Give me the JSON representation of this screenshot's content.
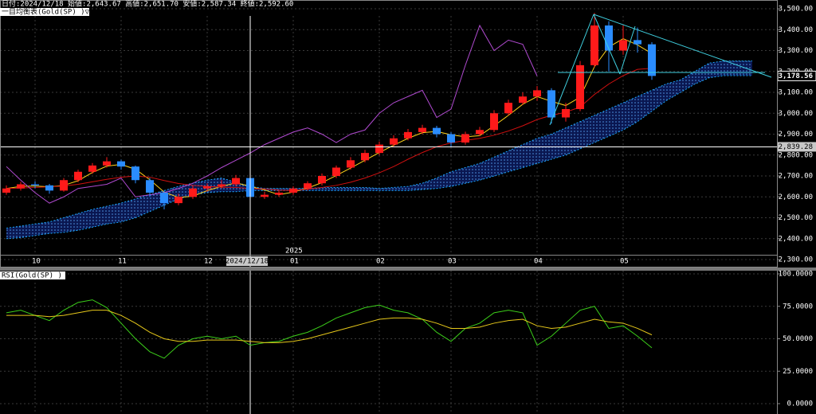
{
  "header": {
    "ohlc_line": "日付:2024/12/18 始値:2,643.67 高値:2,651.70 安値:2,587.34 終値:2,592.60",
    "indicator_label": "一目均衡表(Gold(SP) )▽×"
  },
  "chart_data": [
    {
      "type": "candlestick",
      "categories": [
        null,
        null,
        "10",
        null,
        null,
        null,
        null,
        null,
        "11",
        null,
        null,
        null,
        null,
        null,
        "12",
        null,
        null,
        null,
        null,
        null,
        "01",
        null,
        null,
        null,
        null,
        null,
        "02",
        null,
        null,
        null,
        null,
        "03",
        null,
        null,
        null,
        null,
        null,
        "04",
        null,
        null,
        null,
        null,
        null,
        "05",
        null,
        null,
        null,
        null,
        null,
        null,
        null,
        null,
        null
      ],
      "year_label": "2025",
      "open": [
        2620,
        2640,
        2660,
        2655,
        2630,
        2680,
        2720,
        2750,
        2770,
        2745,
        2680,
        2620,
        2570,
        2600,
        2640,
        2650,
        2660,
        2690,
        2600,
        2610,
        2620,
        2640,
        2665,
        2700,
        2740,
        2775,
        2810,
        2850,
        2880,
        2910,
        2930,
        2900,
        2860,
        2900,
        2920,
        3000,
        3050,
        3080,
        3110,
        2980,
        3020,
        3230,
        3420,
        3300,
        3350,
        3330,
        null,
        null,
        null,
        null,
        null,
        null,
        null
      ],
      "high": [
        2655,
        2672,
        2675,
        2662,
        2690,
        2730,
        2762,
        2790,
        2778,
        2750,
        2690,
        2630,
        2615,
        2655,
        2665,
        2680,
        2705,
        2695,
        2625,
        2632,
        2650,
        2675,
        2712,
        2750,
        2790,
        2825,
        2865,
        2895,
        2925,
        2945,
        2940,
        2910,
        2912,
        2935,
        3015,
        3065,
        3100,
        3130,
        3120,
        3050,
        3250,
        3480,
        3440,
        3420,
        3410,
        3340,
        null,
        null,
        null,
        null,
        null,
        null,
        null
      ],
      "low": [
        2610,
        2630,
        2640,
        2615,
        2625,
        2670,
        2710,
        2740,
        2730,
        2665,
        2600,
        2540,
        2560,
        2590,
        2625,
        2640,
        2650,
        2585,
        2590,
        2600,
        2610,
        2630,
        2655,
        2690,
        2730,
        2765,
        2800,
        2840,
        2870,
        2900,
        2885,
        2840,
        2850,
        2890,
        2910,
        2990,
        3040,
        3060,
        2950,
        2960,
        3010,
        3220,
        3200,
        3280,
        3290,
        3160,
        null,
        null,
        null,
        null,
        null,
        null,
        null
      ],
      "close": [
        2640,
        2660,
        2655,
        2630,
        2680,
        2720,
        2750,
        2770,
        2745,
        2680,
        2620,
        2570,
        2600,
        2640,
        2650,
        2660,
        2690,
        2600,
        2610,
        2620,
        2640,
        2665,
        2700,
        2740,
        2775,
        2810,
        2850,
        2880,
        2910,
        2930,
        2900,
        2860,
        2900,
        2920,
        3000,
        3050,
        3080,
        3110,
        2980,
        3020,
        3230,
        3420,
        3300,
        3350,
        3330,
        3178.56,
        null,
        null,
        null,
        null,
        null,
        null,
        null
      ],
      "up_color": "#ff1a1a",
      "down_color": "#2a8cff",
      "overlays": [
        {
          "color": "#ffd21a",
          "values": [
            2640,
            2650,
            2652,
            2648,
            2655,
            2677,
            2717,
            2747,
            2755,
            2732,
            2682,
            2623,
            2597,
            2603,
            2630,
            2650,
            2667,
            2650,
            2633,
            2610,
            2623,
            2642,
            2668,
            2702,
            2738,
            2775,
            2812,
            2847,
            2880,
            2907,
            2913,
            2897,
            2887,
            2893,
            2940,
            2990,
            3043,
            3080,
            3057,
            3037,
            3077,
            3223,
            3317,
            3357,
            3327,
            3286,
            null,
            null,
            null,
            null,
            null,
            null,
            null
          ]
        },
        {
          "color": "#d01010",
          "values": [
            2640,
            2642,
            2645,
            2648,
            2652,
            2660,
            2672,
            2684,
            2694,
            2700,
            2694,
            2678,
            2664,
            2655,
            2650,
            2646,
            2645,
            2640,
            2638,
            2632,
            2630,
            2637,
            2645,
            2655,
            2670,
            2690,
            2715,
            2745,
            2780,
            2812,
            2840,
            2858,
            2870,
            2880,
            2895,
            2915,
            2940,
            2970,
            2990,
            3005,
            3030,
            3090,
            3140,
            3180,
            3210,
            3215,
            null,
            null,
            null,
            null,
            null,
            null,
            null
          ]
        },
        {
          "color": "#b04ad0",
          "values": [
            2745,
            2680,
            2620,
            2570,
            2600,
            2640,
            2650,
            2660,
            2690,
            2600,
            2610,
            2620,
            2640,
            2665,
            2700,
            2740,
            2775,
            2810,
            2850,
            2880,
            2910,
            2930,
            2900,
            2860,
            2900,
            2920,
            3000,
            3050,
            3080,
            3110,
            2980,
            3020,
            3230,
            3420,
            3300,
            3350,
            3330,
            3178.56,
            null,
            null,
            null,
            null,
            null,
            null,
            null,
            null,
            null,
            null,
            null,
            null,
            null,
            null,
            null
          ]
        }
      ],
      "cloud": {
        "color": "#1aa8ff",
        "span_a": [
          2450,
          2460,
          2470,
          2480,
          2500,
          2520,
          2540,
          2555,
          2570,
          2590,
          2610,
          2630,
          2650,
          2665,
          2680,
          2690,
          2670,
          2650,
          2640,
          2640,
          2640,
          2640,
          2645,
          2645,
          2645,
          2645,
          2640,
          2645,
          2650,
          2665,
          2690,
          2720,
          2740,
          2760,
          2790,
          2820,
          2850,
          2880,
          2900,
          2930,
          2960,
          2990,
          3020,
          3050,
          3080,
          3110,
          3140,
          3160,
          3200,
          3240,
          3250,
          3250,
          3250
        ],
        "span_b": [
          2400,
          2405,
          2415,
          2425,
          2430,
          2440,
          2455,
          2470,
          2480,
          2500,
          2530,
          2560,
          2590,
          2610,
          2620,
          2625,
          2625,
          2630,
          2630,
          2630,
          2630,
          2630,
          2630,
          2630,
          2630,
          2630,
          2630,
          2630,
          2630,
          2635,
          2640,
          2650,
          2665,
          2680,
          2700,
          2720,
          2740,
          2760,
          2780,
          2800,
          2830,
          2860,
          2890,
          2920,
          2960,
          3010,
          3060,
          3100,
          3140,
          3170,
          3180,
          3180,
          3180
        ]
      },
      "ylim": [
        2300,
        3500
      ],
      "yticks": [
        {
          "value": 3500,
          "label": "3,500.00"
        },
        {
          "value": 3400,
          "label": "3,400.00"
        },
        {
          "value": 3300,
          "label": "3,300.00"
        },
        {
          "value": 3200,
          "label": "3,200.00"
        },
        {
          "value": 3100,
          "label": "3,100.00"
        },
        {
          "value": 3000,
          "label": "3,000.00"
        },
        {
          "value": 2900,
          "label": "2,900.00"
        },
        {
          "value": 2800,
          "label": "2,800.00"
        },
        {
          "value": 2700,
          "label": "2,700.00"
        },
        {
          "value": 2600,
          "label": "2,600.00"
        },
        {
          "value": 2500,
          "label": "2,500.00"
        },
        {
          "value": 2400,
          "label": "2,400.00"
        },
        {
          "value": 2300,
          "label": "2,300.00"
        }
      ],
      "last_price": {
        "value": 3178.56,
        "label": "3,178.56"
      },
      "cursor": {
        "date": "2024/12/18",
        "price": {
          "value": 2839.28,
          "label": "2,839.28"
        }
      },
      "grid": true
    },
    {
      "type": "line",
      "title": "RSI(Gold(SP) )",
      "series": [
        {
          "color": "#3ccf1a",
          "values": [
            70,
            72,
            68,
            64,
            72,
            78,
            80,
            74,
            62,
            50,
            40,
            35,
            45,
            50,
            52,
            50,
            52,
            45,
            47,
            48,
            52,
            55,
            60,
            66,
            70,
            74,
            76,
            72,
            70,
            65,
            55,
            48,
            58,
            62,
            70,
            72,
            70,
            45,
            52,
            62,
            72,
            75,
            58,
            60,
            52,
            43
          ]
        },
        {
          "color": "#e6c81a",
          "values": [
            68,
            68,
            68,
            67,
            68,
            70,
            72,
            72,
            68,
            62,
            55,
            50,
            48,
            48,
            49,
            49,
            49,
            48,
            47,
            47,
            48,
            50,
            53,
            56,
            59,
            62,
            65,
            66,
            66,
            65,
            62,
            58,
            58,
            59,
            62,
            64,
            65,
            60,
            58,
            59,
            62,
            65,
            63,
            62,
            58,
            53
          ]
        }
      ],
      "ylim": [
        0,
        100
      ],
      "yticks": [
        {
          "value": 100,
          "label": "100.0000"
        },
        {
          "value": 75,
          "label": "75.0000"
        },
        {
          "value": 50,
          "label": "50.0000"
        },
        {
          "value": 25,
          "label": "25.0000"
        },
        {
          "value": 0,
          "label": "0.0000"
        }
      ],
      "grid": true
    }
  ]
}
